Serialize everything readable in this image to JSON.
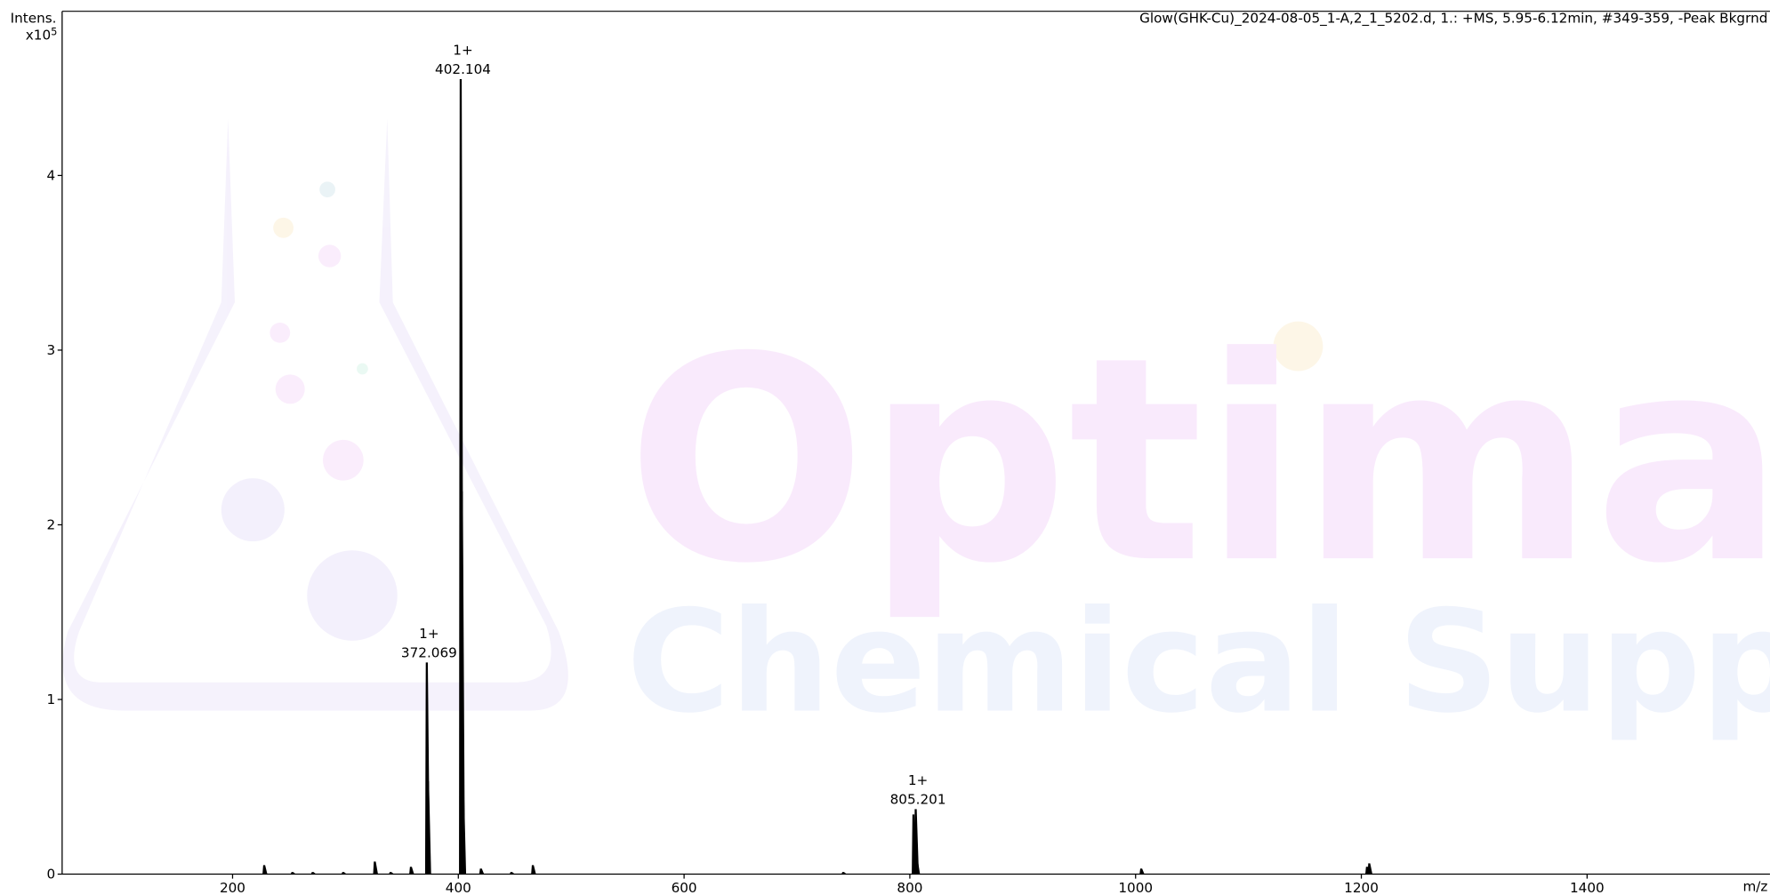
{
  "chart_data": {
    "type": "spectrum",
    "title": "Glow(GHK-Cu)_2024-08-05_1-A,2_1_5202.d, 1.: +MS, 5.95-6.12min, #349-359, -Peak Bkgrnd",
    "y_label": "Intens.",
    "y_multiplier": "x10",
    "y_exponent": "5",
    "x_label": "m/z",
    "watermark": [
      "Optima",
      "Chemical Supply"
    ],
    "color": "#000000",
    "xlim": [
      49,
      1562
    ],
    "ylim": [
      0,
      4.94
    ],
    "xticks": [
      200,
      400,
      600,
      800,
      1000,
      1200,
      1400
    ],
    "yticks": [
      0,
      1,
      2,
      3,
      4
    ],
    "x": [
      228,
      253,
      271,
      298,
      326,
      340,
      358,
      372.069,
      373.1,
      402.104,
      403.1,
      404.1,
      420,
      447,
      466,
      741,
      803.2,
      805.201,
      806.2,
      1005,
      1205,
      1207
    ],
    "values": [
      0.05,
      0.01,
      0.01,
      0.01,
      0.07,
      0.01,
      0.04,
      1.21,
      0.53,
      4.55,
      2.19,
      0.5,
      0.03,
      0.01,
      0.05,
      0.01,
      0.34,
      0.37,
      0.08,
      0.03,
      0.04,
      0.06
    ],
    "peak_labels": [
      {
        "charge": "1+",
        "x": 402.104,
        "y": 4.55
      },
      {
        "charge": "1+",
        "x": 372.069,
        "y": 1.21
      },
      {
        "charge": "1+",
        "x": 805.201,
        "y": 0.37
      }
    ]
  }
}
